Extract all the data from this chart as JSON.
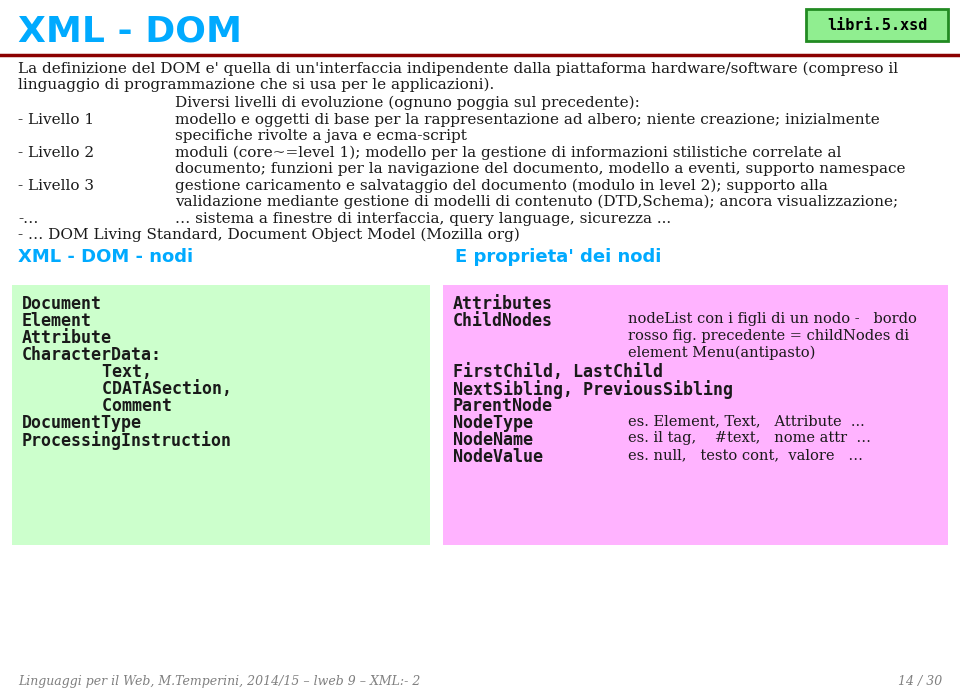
{
  "title": "XML - DOM",
  "title_color": "#00AAFF",
  "badge_text": "libri.5.xsd",
  "badge_bg": "#90EE90",
  "badge_border": "#228B22",
  "badge_text_color": "#000000",
  "hr_color": "#8B0000",
  "bg_color": "#FFFFFF",
  "body_text_color": "#1a1a1a",
  "cyan_color": "#00AAFF",
  "intro_line1": "La definizione del DOM e' quella di un'interfaccia indipendente dalla piattaforma hardware/software (compreso il",
  "intro_line2": "linguaggio di programmazione che si usa per le applicazioni).",
  "levels_header": "Diversi livelli di evoluzione (ognuno poggia sul precedente):",
  "level1_label": "- Livello 1",
  "level1_text1": "modello e oggetti di base per la rappresentazione ad albero; niente creazione; inizialmente",
  "level1_text2": "specifiche rivolte a java e ecma-script",
  "level2_label": "- Livello 2",
  "level2_text1": "moduli (core~=level 1); modello per la gestione di informazioni stilistiche correlate al",
  "level2_text2": "documento; funzioni per la navigazione del documento, modello a eventi, supporto namespace",
  "level3_label": "- Livello 3",
  "level3_text1": "gestione caricamento e salvataggio del documento (modulo in level 2); supporto alla",
  "level3_text2": "validazione mediante gestione di modelli di contenuto (DTD,Schema); ancora visualizzazione;",
  "levelx_label": "-…",
  "levelx_text": "… sistema a finestre di interfaccia, query language, sicurezza ...",
  "dom_line": "- … DOM Living Standard, Document Object Model (Mozilla org)",
  "section1_title": "XML - DOM - nodi",
  "section2_title": "E proprieta' dei nodi",
  "left_box_bg": "#CCFFCC",
  "right_box_bg": "#FFB3FF",
  "left_items": [
    "Document",
    "Element",
    "Attribute",
    "CharacterData:",
    "        Text,",
    "        CDATASection,",
    "        Comment",
    "DocumentType",
    "ProcessingInstruction"
  ],
  "childnodes_desc1": "nodeList con i figli di un nodo -   bordo",
  "childnodes_desc2": "rosso fig. precedente = childNodes di",
  "childnodes_desc3": "element Menu(antipasto)",
  "nodetype_desc": "es. Element, Text,   Attribute  ...",
  "nodename_desc": "es. il tag,    #text,   nome attr  …",
  "nodevalue_desc": "es. null,   testo cont,  valore   …",
  "footer_left": "Linguaggi per il Web, M.Temperini, 2014/15 – lweb 9 – XML:- 2",
  "footer_right": "14 / 30",
  "footer_color": "#808080"
}
